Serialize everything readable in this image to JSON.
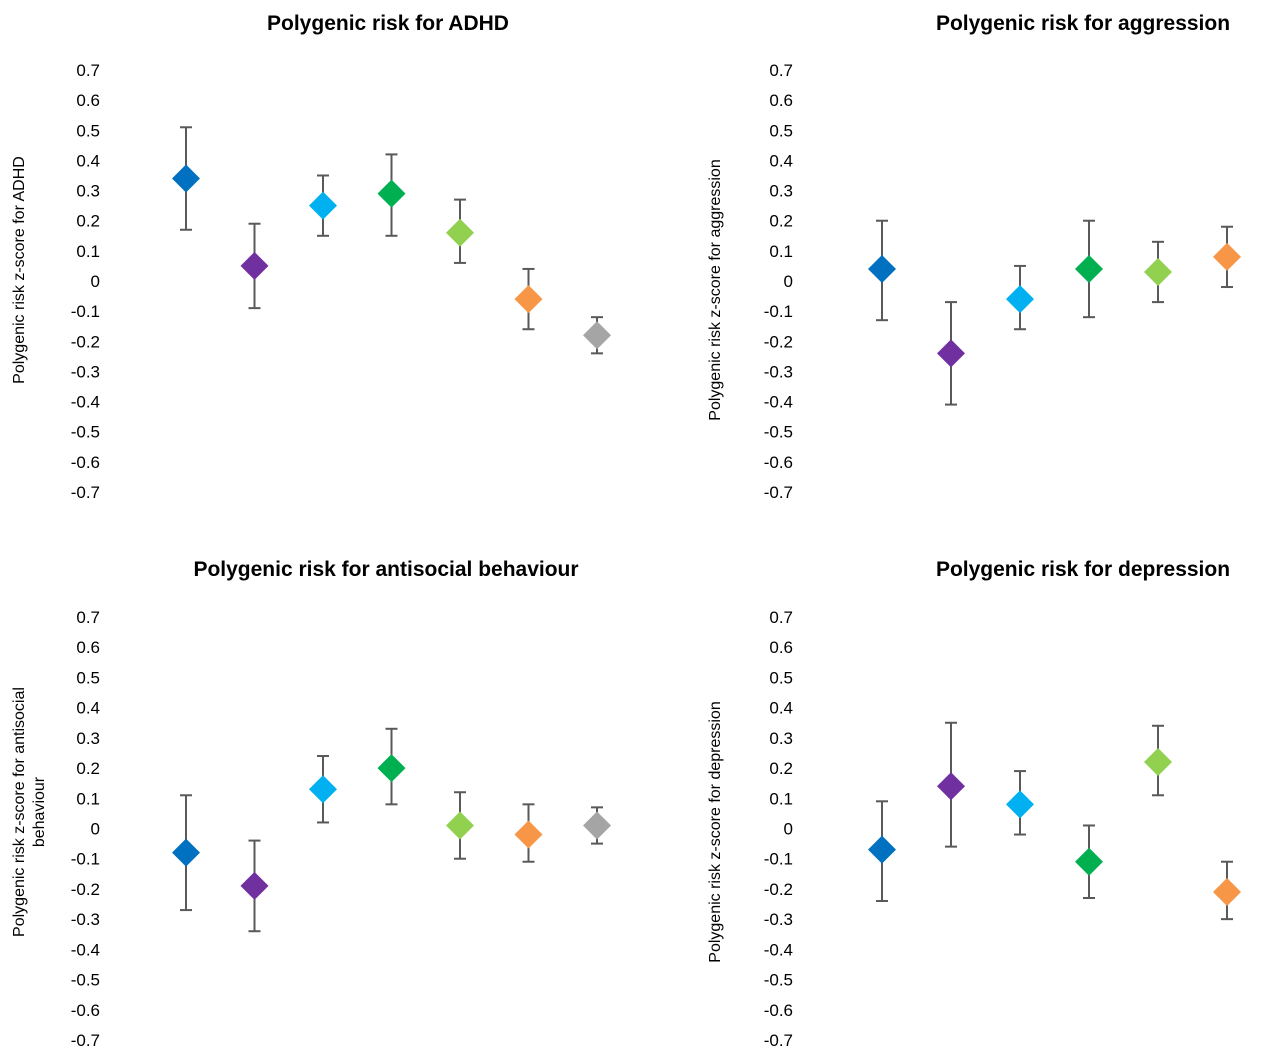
{
  "chart_data": [
    {
      "type": "scatter",
      "title": "Polygenic risk for ADHD",
      "ylabel": [
        "Polygenic risk z-score for ADHD"
      ],
      "ylim": [
        -0.7,
        0.7
      ],
      "yticks": [
        "0.7",
        "0.6",
        "0.5",
        "0.4",
        "0.3",
        "0.2",
        "0.1",
        "0",
        "-0.1",
        "-0.2",
        "-0.3",
        "-0.4",
        "-0.5",
        "-0.6",
        "-0.7"
      ],
      "points": [
        {
          "y": 0.34,
          "low": 0.17,
          "high": 0.51,
          "color": "#0070C0"
        },
        {
          "y": 0.05,
          "low": -0.09,
          "high": 0.19,
          "color": "#7030A0"
        },
        {
          "y": 0.25,
          "low": 0.15,
          "high": 0.35,
          "color": "#00B0F0"
        },
        {
          "y": 0.29,
          "low": 0.15,
          "high": 0.42,
          "color": "#00B050"
        },
        {
          "y": 0.16,
          "low": 0.06,
          "high": 0.27,
          "color": "#92D050"
        },
        {
          "y": -0.06,
          "low": -0.16,
          "high": 0.04,
          "color": "#F79646"
        },
        {
          "y": -0.18,
          "low": -0.24,
          "high": -0.12,
          "color": "#A5A5A5"
        }
      ]
    },
    {
      "type": "scatter",
      "title": "Polygenic risk for aggression",
      "ylabel": [
        "Polygenic risk z-score for aggression"
      ],
      "ylim": [
        -0.7,
        0.7
      ],
      "yticks": [
        "0.7",
        "0.6",
        "0.5",
        "0.4",
        "0.3",
        "0.2",
        "0.1",
        "0",
        "-0.1",
        "-0.2",
        "-0.3",
        "-0.4",
        "-0.5",
        "-0.6",
        "-0.7"
      ],
      "points": [
        {
          "y": 0.04,
          "low": -0.13,
          "high": 0.2,
          "color": "#0070C0"
        },
        {
          "y": -0.24,
          "low": -0.41,
          "high": -0.07,
          "color": "#7030A0"
        },
        {
          "y": -0.06,
          "low": -0.16,
          "high": 0.05,
          "color": "#00B0F0"
        },
        {
          "y": 0.04,
          "low": -0.12,
          "high": 0.2,
          "color": "#00B050"
        },
        {
          "y": 0.03,
          "low": -0.07,
          "high": 0.13,
          "color": "#92D050"
        },
        {
          "y": 0.08,
          "low": -0.02,
          "high": 0.18,
          "color": "#F79646"
        }
      ]
    },
    {
      "type": "scatter",
      "title": "Polygenic risk for antisocial behaviour",
      "ylabel": [
        "Polygenic risk z-score for antisocial",
        "behaviour"
      ],
      "ylim": [
        -0.7,
        0.7
      ],
      "yticks": [
        "0.7",
        "0.6",
        "0.5",
        "0.4",
        "0.3",
        "0.2",
        "0.1",
        "0",
        "-0.1",
        "-0.2",
        "-0.3",
        "-0.4",
        "-0.5",
        "-0.6",
        "-0.7"
      ],
      "points": [
        {
          "y": -0.08,
          "low": -0.27,
          "high": 0.11,
          "color": "#0070C0"
        },
        {
          "y": -0.19,
          "low": -0.34,
          "high": -0.04,
          "color": "#7030A0"
        },
        {
          "y": 0.13,
          "low": 0.02,
          "high": 0.24,
          "color": "#00B0F0"
        },
        {
          "y": 0.2,
          "low": 0.08,
          "high": 0.33,
          "color": "#00B050"
        },
        {
          "y": 0.01,
          "low": -0.1,
          "high": 0.12,
          "color": "#92D050"
        },
        {
          "y": -0.02,
          "low": -0.11,
          "high": 0.08,
          "color": "#F79646"
        },
        {
          "y": 0.01,
          "low": -0.05,
          "high": 0.07,
          "color": "#A5A5A5"
        }
      ]
    },
    {
      "type": "scatter",
      "title": "Polygenic risk for depression",
      "ylabel": [
        "Polygenic risk z-score for depression"
      ],
      "ylim": [
        -0.7,
        0.7
      ],
      "yticks": [
        "0.7",
        "0.6",
        "0.5",
        "0.4",
        "0.3",
        "0.2",
        "0.1",
        "0",
        "-0.1",
        "-0.2",
        "-0.3",
        "-0.4",
        "-0.5",
        "-0.6",
        "-0.7"
      ],
      "points": [
        {
          "y": -0.07,
          "low": -0.24,
          "high": 0.09,
          "color": "#0070C0"
        },
        {
          "y": 0.14,
          "low": -0.06,
          "high": 0.35,
          "color": "#7030A0"
        },
        {
          "y": 0.08,
          "low": -0.02,
          "high": 0.19,
          "color": "#00B0F0"
        },
        {
          "y": -0.11,
          "low": -0.23,
          "high": 0.01,
          "color": "#00B050"
        },
        {
          "y": 0.22,
          "low": 0.11,
          "high": 0.34,
          "color": "#92D050"
        },
        {
          "y": -0.21,
          "low": -0.3,
          "high": -0.11,
          "color": "#F79646"
        }
      ]
    }
  ]
}
